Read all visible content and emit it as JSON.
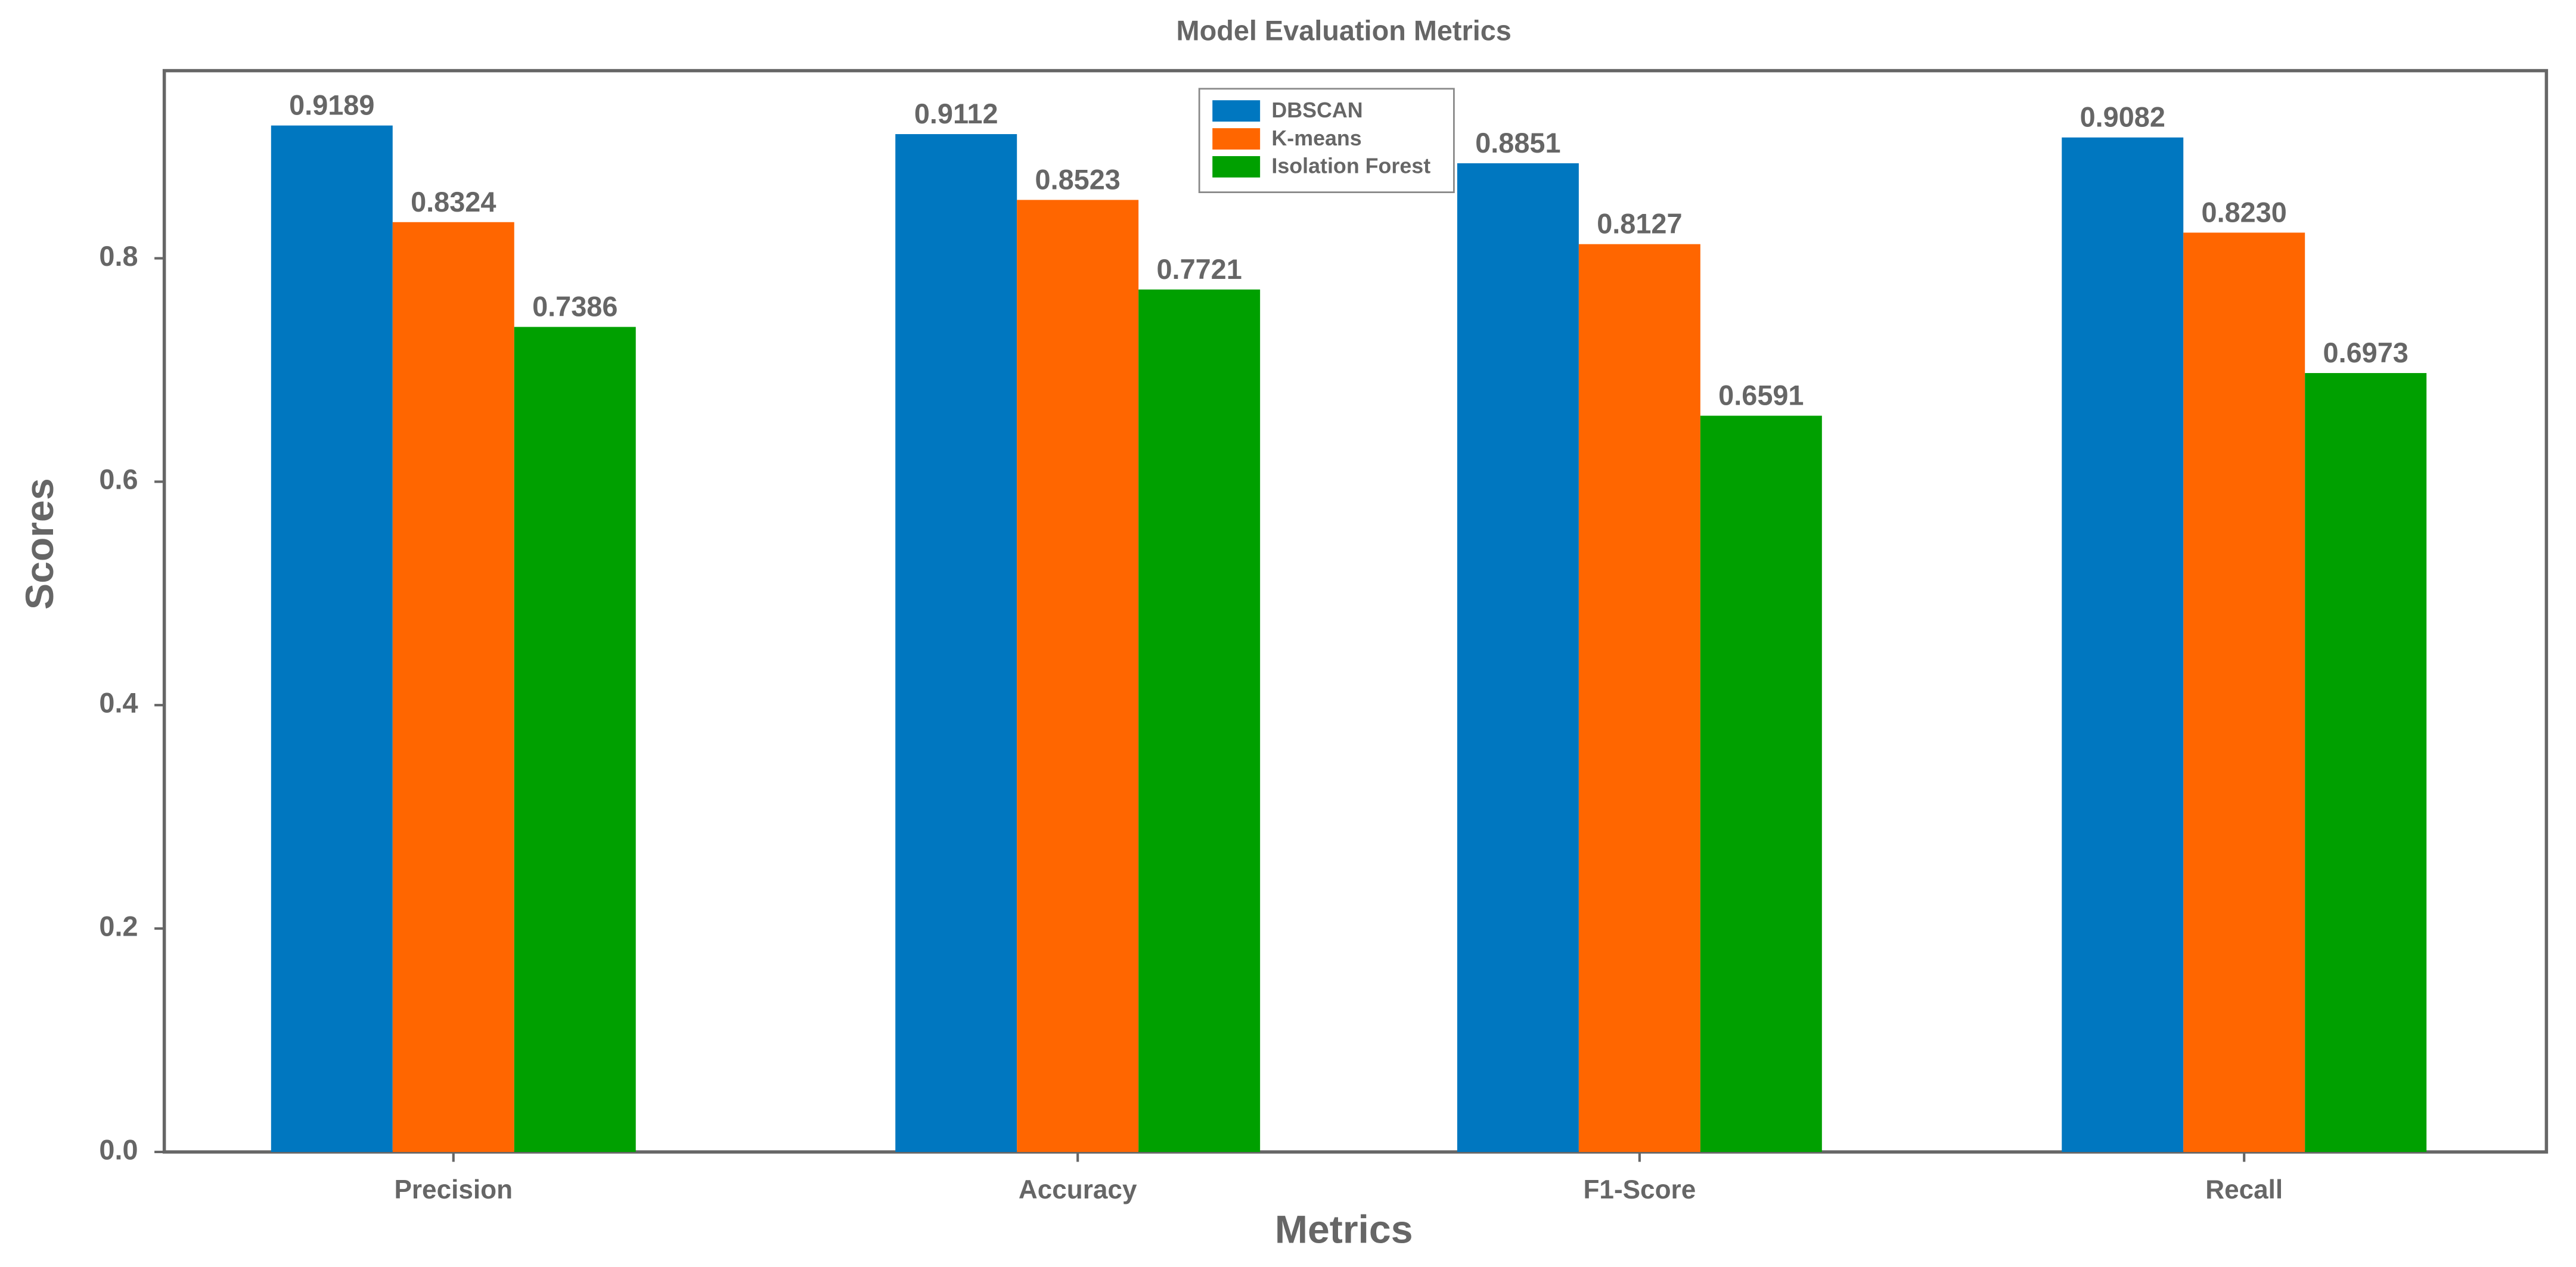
{
  "chart_data": {
    "type": "bar",
    "title": "Model Evaluation Metrics",
    "x_label": "Metrics",
    "y_label": "Scores",
    "categories": [
      "Precision",
      "Accuracy",
      "F1-Score",
      "Recall"
    ],
    "series": [
      {
        "name": "DBSCAN",
        "color": "#0077c0",
        "values": [
          0.9189,
          0.9112,
          0.8851,
          0.9082
        ],
        "value_labels": [
          "0.9189",
          "0.9112",
          "0.8851",
          "0.9082"
        ]
      },
      {
        "name": "K-means",
        "color": "#ff6600",
        "values": [
          0.8324,
          0.8523,
          0.8127,
          0.823
        ],
        "value_labels": [
          "0.8324",
          "0.8523",
          "0.8127",
          "0.8230"
        ]
      },
      {
        "name": "Isolation Forest",
        "color": "#00a000",
        "values": [
          0.7386,
          0.7721,
          0.6591,
          0.6973
        ],
        "value_labels": [
          "0.7386",
          "0.7721",
          "0.6591",
          "0.6973"
        ]
      }
    ],
    "ylim": [
      0,
      0.968
    ],
    "yticks": [
      {
        "value": 0,
        "label": "0.0"
      },
      0.2,
      0.4,
      0.6,
      0.8
    ],
    "grid": false,
    "legend": "upper center"
  }
}
